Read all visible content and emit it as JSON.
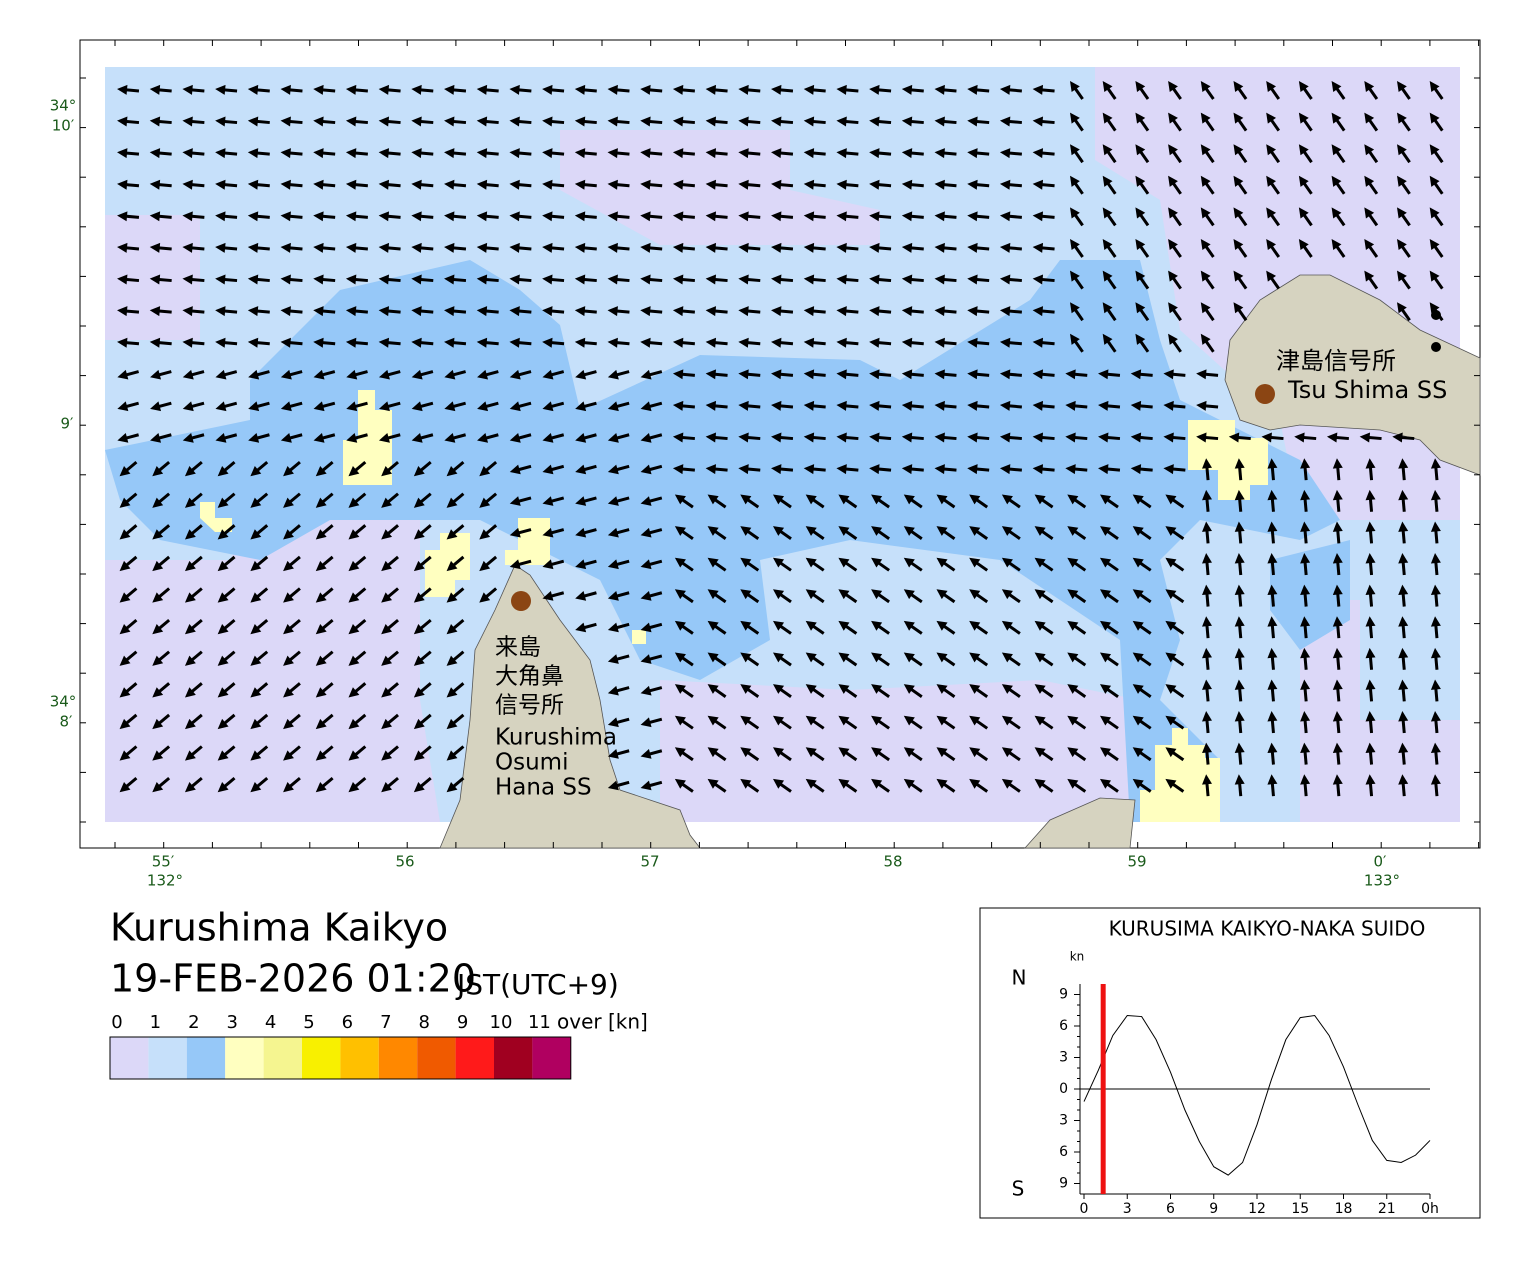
{
  "map": {
    "lat_labels": [
      {
        "deg": "34°",
        "min": "10′"
      },
      {
        "min": "9′"
      },
      {
        "deg": "34°",
        "min": "8′"
      }
    ],
    "lon_labels": [
      {
        "min": "55′",
        "deg": "132°"
      },
      {
        "min": "56"
      },
      {
        "min": "57"
      },
      {
        "min": "58"
      },
      {
        "min": "59"
      },
      {
        "min": "0′",
        "deg": "133°"
      }
    ],
    "stations": [
      {
        "name_ja": "津島信号所",
        "name_en": "Tsu Shima SS"
      },
      {
        "name_ja_lines": [
          "来島",
          "大角鼻",
          "信号所"
        ],
        "name_en_lines": [
          "Kurushima",
          "Osumi",
          "Hana SS"
        ]
      }
    ]
  },
  "title": "Kurushima Kaikyo",
  "datetime": "19-FEB-2026 01:20",
  "timezone": "JST(UTC+9)",
  "legend": {
    "labels": [
      "0",
      "1",
      "2",
      "3",
      "4",
      "5",
      "6",
      "7",
      "8",
      "9",
      "10",
      "11"
    ],
    "unit": "over [kn]",
    "colors": [
      "#dcd8f8",
      "#c6e0fa",
      "#96c8f8",
      "#ffffc0",
      "#f5f590",
      "#f8f000",
      "#ffc000",
      "#ff8800",
      "#f05a00",
      "#ff1a1a",
      "#a00020",
      "#b00060"
    ]
  },
  "chart_data": {
    "type": "line",
    "title": "KURUSIMA KAIKYO-NAKA SUIDO",
    "y_label": "kn",
    "north_label": "N",
    "south_label": "S",
    "x": [
      0,
      1,
      2,
      3,
      4,
      5,
      6,
      7,
      8,
      9,
      10,
      11,
      12,
      13,
      14,
      15,
      16,
      17,
      18,
      19,
      20,
      21,
      22,
      23,
      24
    ],
    "series": [
      {
        "color": "#000000",
        "values": [
          -1.2,
          1.8,
          5.1,
          7.0,
          6.9,
          4.7,
          1.6,
          -2.0,
          -5.0,
          -7.4,
          -8.2,
          -7.0,
          -3.4,
          0.9,
          4.7,
          6.8,
          7.0,
          5.1,
          2.1,
          -1.5,
          -4.9,
          -6.8,
          -7.0,
          -6.3,
          -4.9
        ]
      }
    ],
    "current_time": 1.33,
    "current_color": "#ee1111",
    "xlim": [
      0,
      24
    ],
    "xticks": [
      0,
      3,
      6,
      9,
      12,
      15,
      18,
      21,
      {
        "value": 24,
        "label": "0h"
      }
    ],
    "ylim": [
      -10,
      10
    ],
    "yticks": [
      {
        "value": 9,
        "label": "9"
      },
      {
        "value": 6,
        "label": "6"
      },
      {
        "value": 3,
        "label": "3"
      },
      0,
      {
        "value": -3,
        "label": "3"
      },
      {
        "value": -6,
        "label": "6"
      },
      {
        "value": -9,
        "label": "9"
      }
    ]
  }
}
